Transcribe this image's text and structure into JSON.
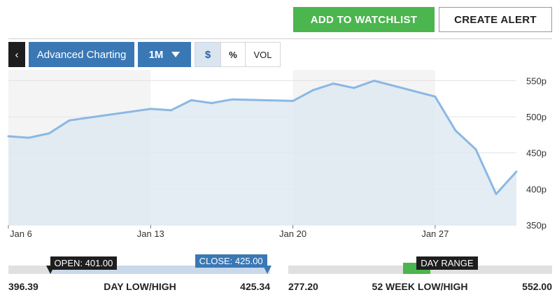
{
  "header": {
    "watchlist_label": "ADD TO WATCHLIST",
    "alert_label": "CREATE ALERT"
  },
  "toolbar": {
    "back_glyph": "‹",
    "advanced_label": "Advanced Charting",
    "range_label": "1M",
    "currency_label": "$",
    "percent_label": "%",
    "volume_label": "VOL"
  },
  "chart_data": {
    "type": "area",
    "x": [
      "2020-01-06",
      "2020-01-07",
      "2020-01-08",
      "2020-01-09",
      "2020-01-10",
      "2020-01-13",
      "2020-01-14",
      "2020-01-15",
      "2020-01-16",
      "2020-01-17",
      "2020-01-20",
      "2020-01-21",
      "2020-01-22",
      "2020-01-23",
      "2020-01-24",
      "2020-01-27",
      "2020-01-28",
      "2020-01-29",
      "2020-01-30",
      "2020-01-31"
    ],
    "values": [
      473,
      471,
      477,
      495,
      499,
      511,
      509,
      523,
      519,
      524,
      522,
      537,
      546,
      540,
      550,
      528,
      481,
      455,
      393,
      424
    ],
    "xticks": [
      {
        "x": "2020-01-06",
        "label": "Jan 6"
      },
      {
        "x": "2020-01-13",
        "label": "Jan 13"
      },
      {
        "x": "2020-01-20",
        "label": "Jan 20"
      },
      {
        "x": "2020-01-27",
        "label": "Jan 27"
      }
    ],
    "yticks": [
      {
        "y": 550,
        "label": "550p"
      },
      {
        "y": 500,
        "label": "500p"
      },
      {
        "y": 450,
        "label": "450p"
      },
      {
        "y": 400,
        "label": "400p"
      },
      {
        "y": 350,
        "label": "350p"
      }
    ],
    "ylim": [
      350,
      565
    ],
    "grid": true,
    "line_color": "#8ab8e3",
    "fill_color": "#dde8f1",
    "band_color": "#f4f4f4"
  },
  "day_range": {
    "low": "396.39",
    "high": "425.34",
    "label": "DAY LOW/HIGH",
    "open_label": "OPEN: 401.00",
    "close_label": "CLOSE: 425.00",
    "low_value": 396.39,
    "high_value": 425.34,
    "open_value": 401.0,
    "close_value": 425.0
  },
  "week52_range": {
    "low": "277.20",
    "high": "552.00",
    "label": "52 WEEK LOW/HIGH",
    "marker_label": "DAY RANGE",
    "low_value": 277.2,
    "high_value": 552.0,
    "day_low": 396.39,
    "day_high": 425.34
  }
}
